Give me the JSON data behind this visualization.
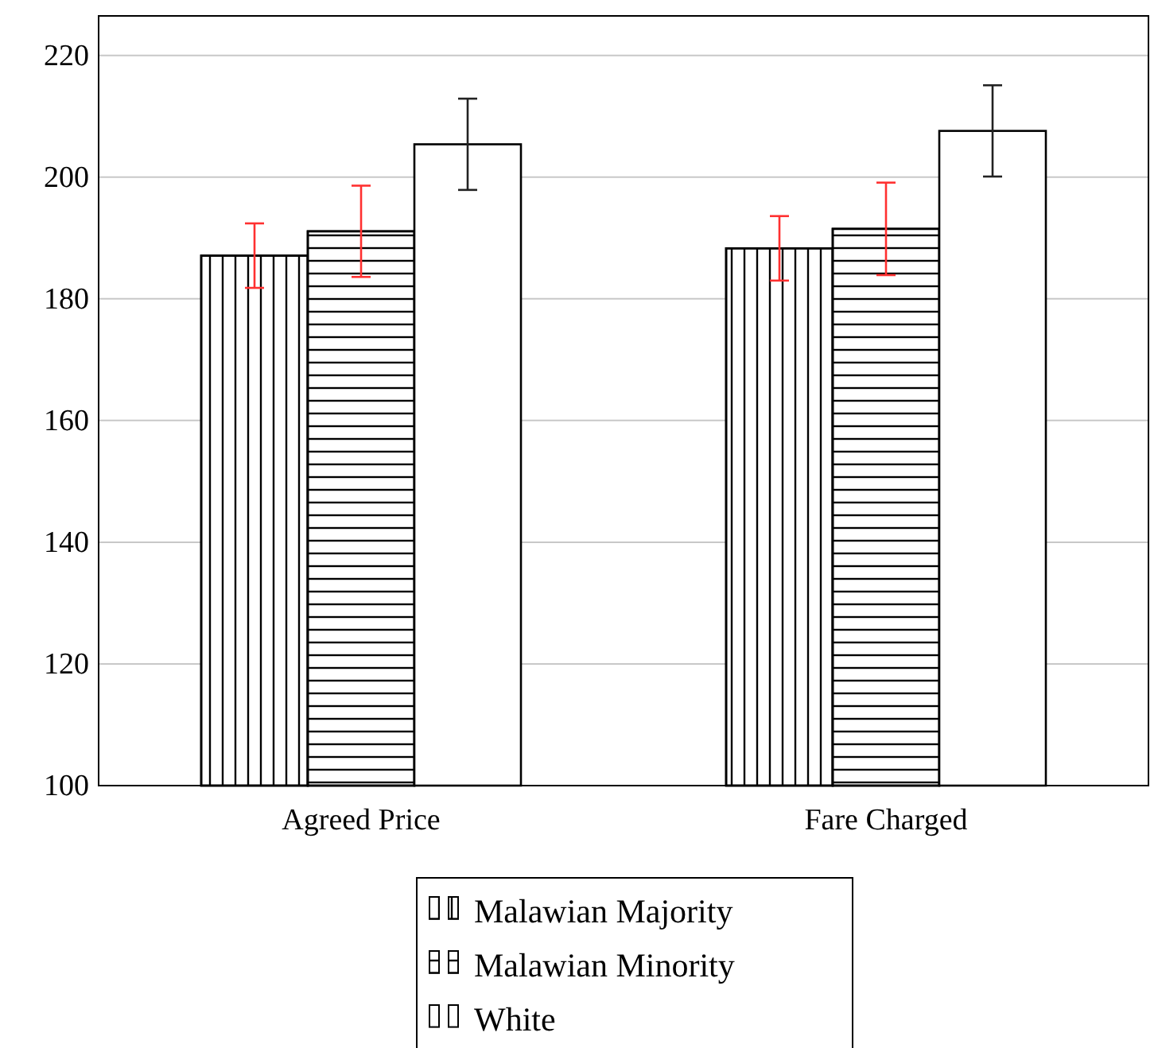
{
  "chart_data": {
    "type": "bar",
    "categories": [
      "Agreed Price",
      "Fare Charged"
    ],
    "series": [
      {
        "name": "Malawian Majority",
        "color": "#ffffff",
        "values": [
          187.1,
          188.3
        ],
        "errors": [
          5.3,
          5.3
        ]
      },
      {
        "name": "Malawian Minority",
        "color": "#ffffff",
        "values": [
          191.1,
          191.5
        ],
        "errors": [
          7.5,
          7.6
        ]
      },
      {
        "name": "White",
        "color": "#ffffff",
        "values": [
          205.4,
          207.6
        ],
        "errors": [
          7.5,
          7.5
        ]
      }
    ],
    "ylim": [
      100,
      226.5
    ],
    "yticks": [
      100,
      120,
      140,
      160,
      180,
      200,
      220
    ],
    "grid": "y",
    "legend": "bottom"
  }
}
